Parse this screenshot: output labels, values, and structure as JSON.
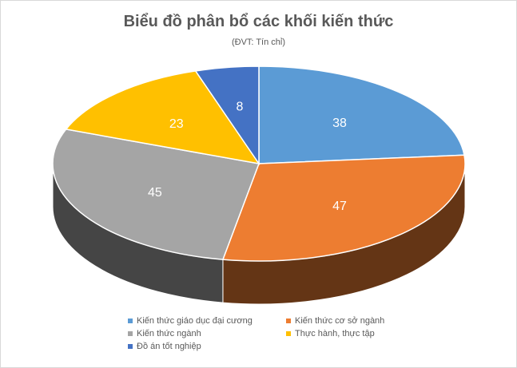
{
  "chart_data": {
    "type": "pie",
    "title": "Biểu đồ phân bổ các khối kiến thức",
    "subtitle": "(ĐVT: Tín chỉ)",
    "categories": [
      "Kiến thức giáo dục đại cương",
      "Kiến thức cơ sở ngành",
      "Kiến thức ngành",
      "Thực hành, thực tập",
      "Đồ án tốt nghiệp"
    ],
    "values": [
      38,
      47,
      45,
      23,
      8
    ],
    "colors": [
      "#5b9bd5",
      "#ed7d31",
      "#a5a5a5",
      "#ffc000",
      "#4472c4"
    ],
    "legend_position": "bottom"
  }
}
